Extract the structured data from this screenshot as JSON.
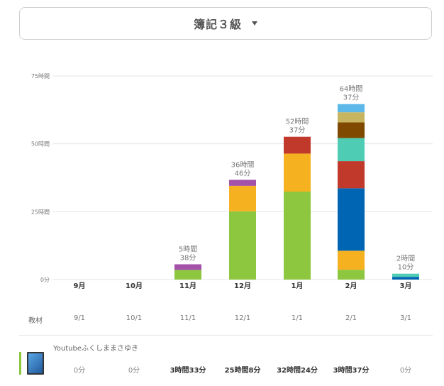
{
  "selector": {
    "title": "簿記３級"
  },
  "row_label": "教材",
  "month_dates": [
    "9/1",
    "10/1",
    "11/1",
    "12/1",
    "1/1",
    "2/1",
    "3/1"
  ],
  "material": {
    "name": "Youtubeふくしままさゆき",
    "color": "#8dc63f",
    "values": [
      "0分",
      "0分",
      "3時間33分",
      "25時間8分",
      "32時間24分",
      "3時間37分",
      "0分"
    ],
    "bold": [
      false,
      false,
      true,
      true,
      true,
      true,
      false
    ]
  },
  "chart_data": {
    "type": "bar",
    "stacked": true,
    "categories": [
      "9月",
      "10月",
      "11月",
      "12月",
      "1月",
      "2月",
      "3月"
    ],
    "y_ticks": [
      "0分",
      "25時間",
      "50時間",
      "75時間"
    ],
    "y_tick_values": [
      0,
      25,
      50,
      75
    ],
    "ylim": [
      0,
      75
    ],
    "grid": true,
    "totals": [
      null,
      null,
      [
        "5時間",
        "38分"
      ],
      [
        "36時間",
        "46分"
      ],
      [
        "52時間",
        "37分"
      ],
      [
        "64時間",
        "37分"
      ],
      [
        "2時間",
        "10分"
      ]
    ],
    "series": [
      {
        "color": "#8dc63f",
        "values": [
          0,
          0,
          3.55,
          25.13,
          32.4,
          3.62,
          0
        ]
      },
      {
        "color": "#f5b120",
        "values": [
          0,
          0,
          0,
          9.4,
          14.0,
          7.0,
          0
        ]
      },
      {
        "color": "#0066b3",
        "values": [
          0,
          0,
          0,
          0,
          0,
          23.0,
          1.0
        ]
      },
      {
        "color": "#c0392b",
        "values": [
          0,
          0,
          0,
          0,
          6.2,
          10.0,
          0
        ]
      },
      {
        "color": "#4ecdb4",
        "values": [
          0,
          0,
          0,
          0,
          0,
          8.5,
          1.17
        ]
      },
      {
        "color": "#7f4a00",
        "values": [
          0,
          0,
          0,
          0,
          0,
          5.8,
          0
        ]
      },
      {
        "color": "#c8b560",
        "values": [
          0,
          0,
          0,
          0,
          0,
          3.7,
          0
        ]
      },
      {
        "color": "#5bb8e8",
        "values": [
          0,
          0,
          0,
          0,
          0,
          3.0,
          0
        ]
      },
      {
        "color": "#a352a8",
        "values": [
          0,
          0,
          2.08,
          2.2,
          0,
          0,
          0
        ]
      }
    ]
  }
}
